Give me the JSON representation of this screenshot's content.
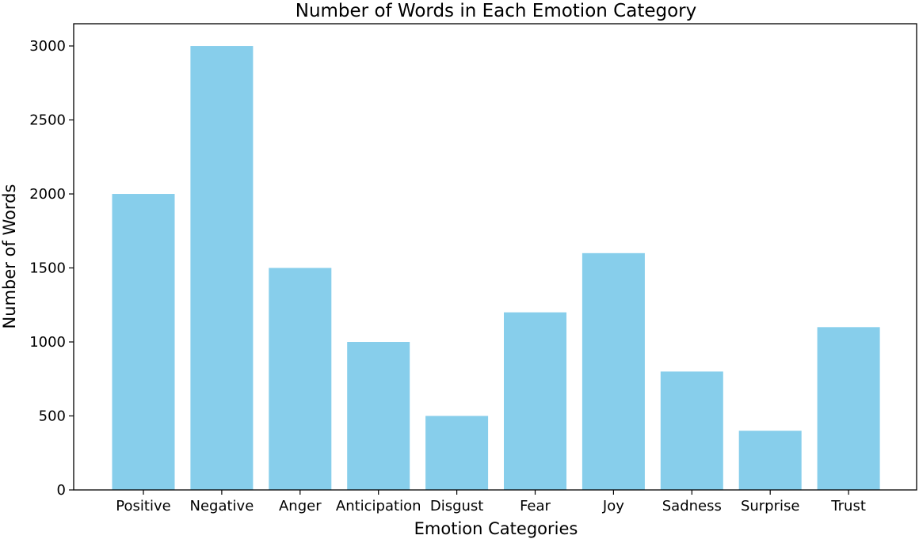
{
  "chart_data": {
    "type": "bar",
    "title": "Number of Words in Each Emotion Category",
    "xlabel": "Emotion Categories",
    "ylabel": "Number of Words",
    "categories": [
      "Positive",
      "Negative",
      "Anger",
      "Anticipation",
      "Disgust",
      "Fear",
      "Joy",
      "Sadness",
      "Surprise",
      "Trust"
    ],
    "values": [
      2000,
      3000,
      1500,
      1000,
      500,
      1200,
      1600,
      800,
      400,
      1100
    ],
    "ylim": [
      0,
      3150
    ],
    "yticks": [
      0,
      500,
      1000,
      1500,
      2000,
      2500,
      3000
    ],
    "bar_color": "#87ceeb",
    "grid": false,
    "legend": "none"
  }
}
